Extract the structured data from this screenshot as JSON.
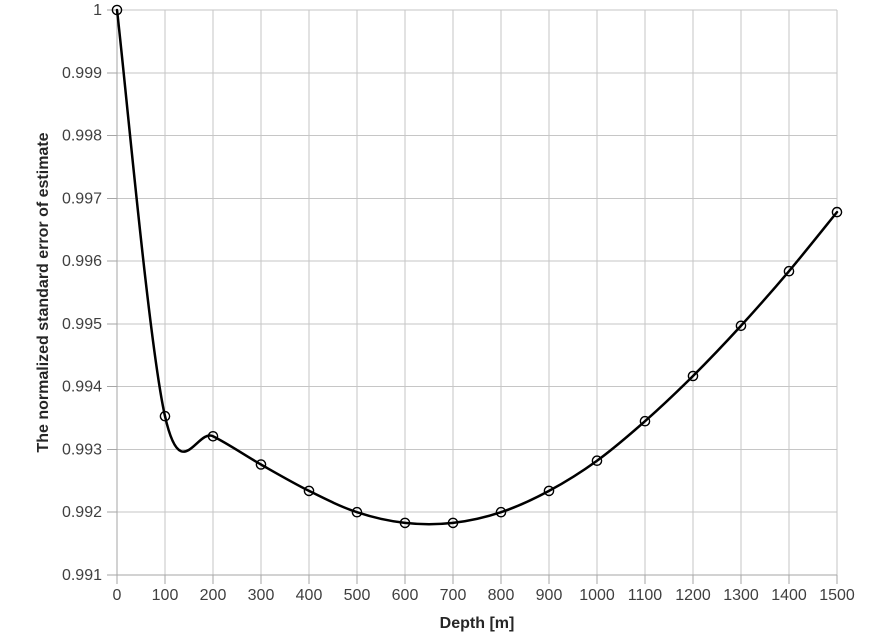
{
  "chart_data": {
    "type": "line",
    "title": "",
    "xlabel": "Depth [m]",
    "ylabel": "The normalized standard error of estimate",
    "x": [
      0,
      100,
      200,
      300,
      400,
      500,
      600,
      700,
      800,
      900,
      1000,
      1100,
      1200,
      1300,
      1400,
      1500
    ],
    "series": [
      {
        "name": "Normalized standard error of estimate",
        "values": [
          1.0,
          0.99353,
          0.99321,
          0.99276,
          0.99234,
          0.992,
          0.99183,
          0.99183,
          0.992,
          0.99234,
          0.99282,
          0.99345,
          0.99417,
          0.99497,
          0.99584,
          0.99678
        ]
      }
    ],
    "xlim": [
      0,
      1500
    ],
    "ylim": [
      0.991,
      1.0
    ],
    "x_tick_step": 100,
    "y_tick_step": 0.001,
    "y_top_tick_label": "1",
    "grid": true,
    "legend": "none",
    "line_style": "smooth",
    "marker": "open-circle",
    "colors": {
      "line": "#000000",
      "marker_stroke": "#000000",
      "grid": "#c6c6c6",
      "axis": "#a6a6a6",
      "tick_label": "#3f3f3f",
      "axis_title": "#262626",
      "background": "#ffffff"
    }
  }
}
